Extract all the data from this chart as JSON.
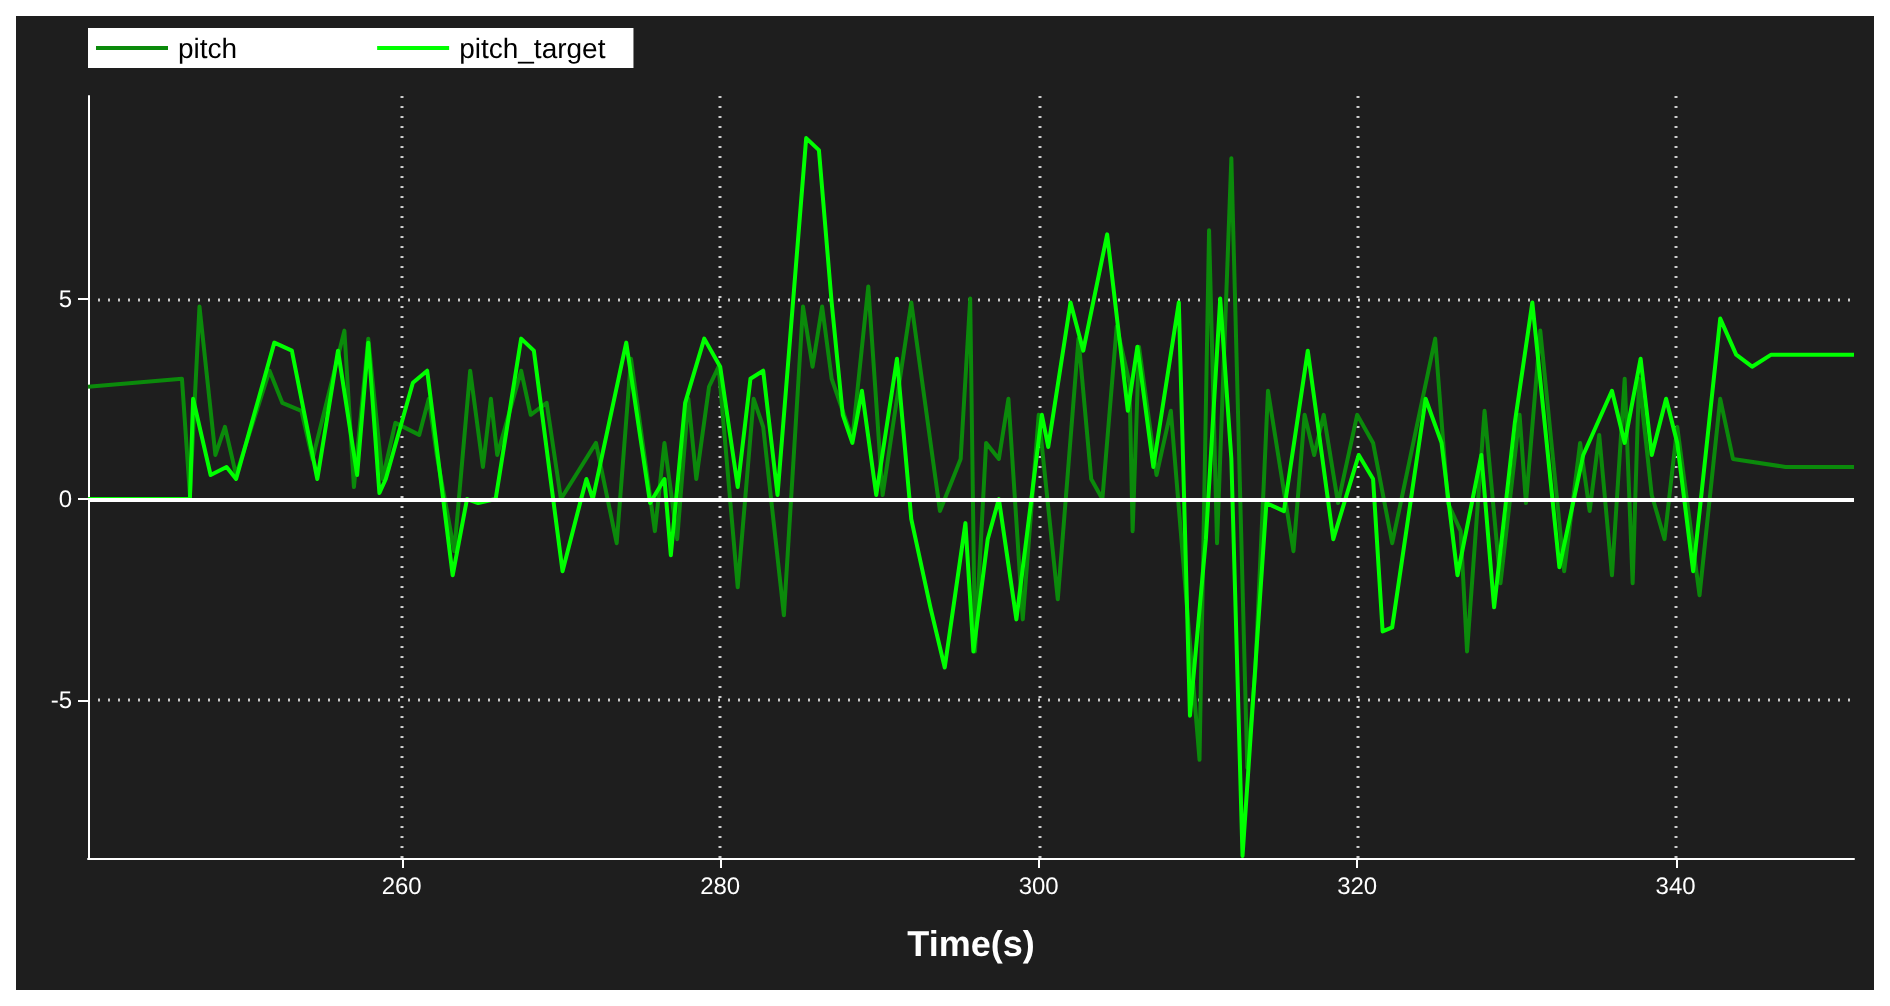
{
  "chart_data": {
    "type": "line",
    "xlabel": "Time(s)",
    "xlim": [
      240.3,
      351.2
    ],
    "xticks": [
      260,
      280,
      300,
      320,
      340
    ],
    "ylim": [
      -8.95,
      10.05
    ],
    "yticks": [
      -5,
      0,
      5
    ],
    "grid": true,
    "legend": "top left",
    "marker": "none",
    "line_style": "solid",
    "ref_lines": [
      {
        "axis": "y",
        "value": 0,
        "color": "#ffffff"
      }
    ],
    "series": [
      {
        "name": "pitch",
        "color": "#0b8a0b",
        "x": [
          240.3,
          246.2,
          246.7,
          247.3,
          248.3,
          248.9,
          249.6,
          251.7,
          252.5,
          253.7,
          254.4,
          256.4,
          257.0,
          257.9,
          258.8,
          259.6,
          261.1,
          261.7,
          262.2,
          263.3,
          264.3,
          265.1,
          265.6,
          266.0,
          267.5,
          268.1,
          269.1,
          270.0,
          272.2,
          273.5,
          274.4,
          275.9,
          276.5,
          277.3,
          278.0,
          278.5,
          279.3,
          279.9,
          281.1,
          282.1,
          282.7,
          284.0,
          285.2,
          285.8,
          286.4,
          287.0,
          288.3,
          289.3,
          290.2,
          292.0,
          293.8,
          295.1,
          295.7,
          296.0,
          296.7,
          297.5,
          298.1,
          299.0,
          300.0,
          301.2,
          302.5,
          303.3,
          304.0,
          304.9,
          305.7,
          305.9,
          306.3,
          307.4,
          308.3,
          310.1,
          310.7,
          311.2,
          312.1,
          313.1,
          313.6,
          314.4,
          316.0,
          316.7,
          317.3,
          317.9,
          318.8,
          320.0,
          321.0,
          322.2,
          324.9,
          325.7,
          326.5,
          326.9,
          328.0,
          329.0,
          330.2,
          330.6,
          331.5,
          333.0,
          334.0,
          334.6,
          335.2,
          336.0,
          336.8,
          337.3,
          337.7,
          338.5,
          339.3,
          340.1,
          341.5,
          342.8,
          343.6,
          346.9,
          351.2
        ],
        "values": [
          2.8,
          3.0,
          0.1,
          4.8,
          1.1,
          1.8,
          0.6,
          3.2,
          2.4,
          2.2,
          1.0,
          4.2,
          0.3,
          4.0,
          0.5,
          1.9,
          1.6,
          2.5,
          1.1,
          -1.3,
          3.2,
          0.8,
          2.5,
          1.1,
          3.2,
          2.1,
          2.4,
          0,
          1.4,
          -1.1,
          3.5,
          -0.8,
          1.4,
          -1.0,
          2.5,
          0.5,
          2.8,
          3.3,
          -2.2,
          2.5,
          1.8,
          -2.9,
          4.8,
          3.3,
          4.8,
          3.0,
          1.5,
          5.3,
          0.1,
          4.9,
          -0.3,
          1.0,
          5.0,
          -3.8,
          1.4,
          1.0,
          2.5,
          -3.0,
          2.1,
          -2.5,
          4.0,
          0.5,
          0,
          4.3,
          2.9,
          -0.8,
          3.8,
          0.6,
          2.2,
          -6.5,
          6.7,
          -1.1,
          8.5,
          -6.7,
          -4.3,
          2.7,
          -1.3,
          2.1,
          1.1,
          2.1,
          -0.1,
          2.1,
          1.4,
          -1.1,
          4.0,
          -0.1,
          -0.8,
          -3.8,
          2.2,
          -2.1,
          2.1,
          -0.1,
          4.2,
          -1.8,
          1.4,
          -0.3,
          1.6,
          -1.9,
          3.0,
          -2.1,
          3.0,
          0.1,
          -1.0,
          1.8,
          -2.4,
          2.5,
          1.0,
          0.8,
          0.8
        ]
      },
      {
        "name": "pitch_target",
        "color": "#00ff00",
        "x": [
          240.3,
          246.7,
          246.9,
          248.0,
          249.0,
          249.6,
          252.0,
          253.1,
          254.7,
          256.0,
          257.2,
          257.9,
          258.6,
          259.0,
          260.7,
          261.6,
          263.2,
          264.1,
          264.8,
          265.9,
          267.5,
          268.3,
          270.1,
          271.2,
          271.6,
          272.0,
          274.1,
          275.6,
          276.5,
          276.9,
          277.8,
          279.0,
          280.0,
          281.1,
          281.9,
          282.7,
          283.6,
          285.4,
          286.2,
          287.0,
          287.7,
          288.3,
          288.9,
          289.8,
          291.1,
          292.0,
          293.2,
          294.1,
          295.4,
          295.9,
          296.8,
          297.5,
          298.6,
          300.2,
          300.6,
          302.0,
          302.8,
          304.3,
          305.6,
          306.2,
          307.2,
          308.8,
          309.5,
          310.5,
          311.4,
          312.1,
          312.8,
          314.3,
          315.4,
          316.9,
          318.5,
          320.1,
          321.0,
          321.6,
          322.2,
          324.3,
          325.3,
          326.3,
          327.8,
          328.6,
          329.9,
          331.0,
          332.7,
          334.2,
          336.0,
          336.8,
          337.8,
          338.5,
          339.4,
          340.1,
          341.1,
          342.8,
          343.8,
          344.8,
          346.0,
          351.2
        ],
        "values": [
          0,
          0,
          2.5,
          0.6,
          0.8,
          0.5,
          3.9,
          3.7,
          0.5,
          3.7,
          0.6,
          3.9,
          0.15,
          0.5,
          2.9,
          3.2,
          -1.9,
          0,
          -0.1,
          0,
          4.0,
          3.7,
          -1.8,
          -0.1,
          0.5,
          0,
          3.9,
          -0.1,
          0.5,
          -1.4,
          2.4,
          4.0,
          3.3,
          0.3,
          3.0,
          3.2,
          0.1,
          9.0,
          8.7,
          4.9,
          2.1,
          1.4,
          2.7,
          0.1,
          3.5,
          -0.5,
          -2.7,
          -4.2,
          -0.6,
          -3.8,
          -1.0,
          0,
          -3.0,
          2.1,
          1.3,
          4.9,
          3.7,
          6.6,
          2.2,
          3.8,
          0.8,
          4.9,
          -5.4,
          -1.0,
          5.0,
          1.0,
          -8.9,
          -0.1,
          -0.3,
          3.7,
          -1.0,
          1.1,
          0.5,
          -3.3,
          -3.2,
          2.5,
          1.4,
          -1.9,
          1.1,
          -2.7,
          1.9,
          4.9,
          -1.7,
          1.1,
          2.7,
          1.4,
          3.5,
          1.1,
          2.5,
          1.4,
          -1.8,
          4.5,
          3.6,
          3.3,
          3.6,
          3.6
        ]
      }
    ]
  }
}
